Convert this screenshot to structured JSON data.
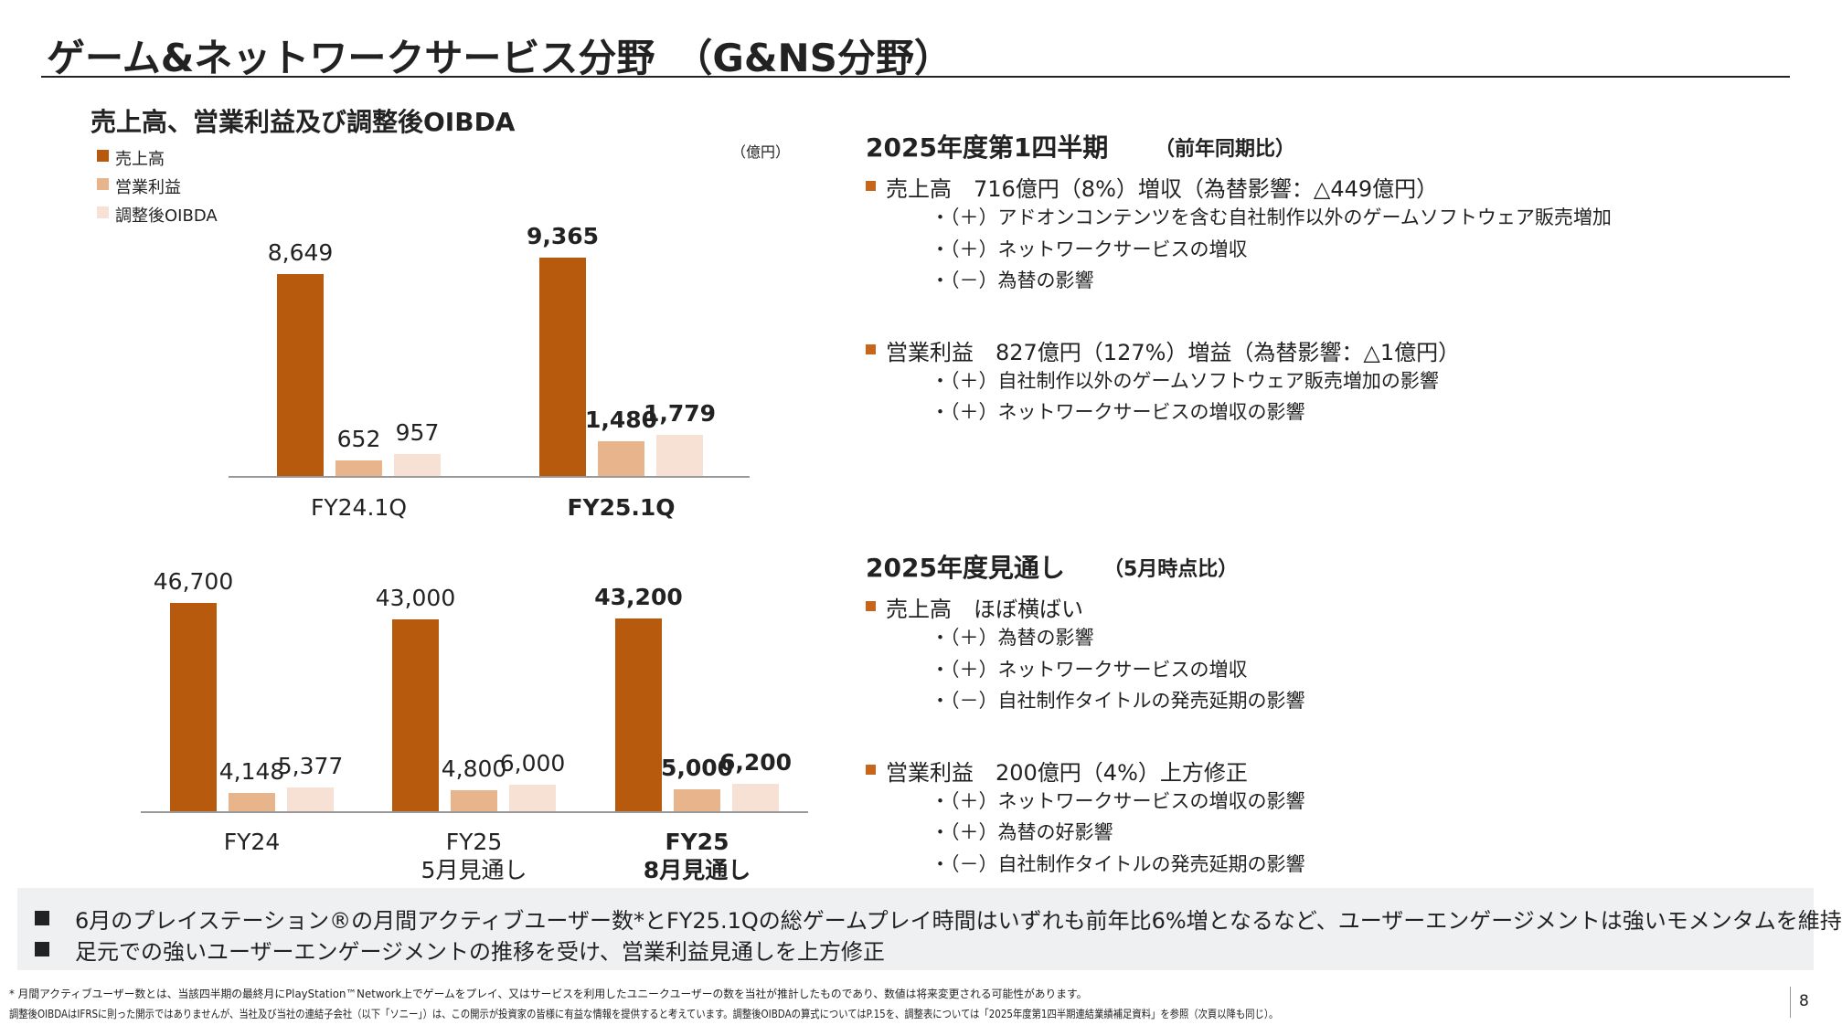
{
  "header": {
    "title": "ゲーム&ネットワークサービス分野　（G&NS分野）"
  },
  "chart_data": [
    {
      "type": "bar",
      "title": "売上高、営業利益及び調整後OIBDA",
      "unit": "（億円）",
      "categories": [
        "FY24.1Q",
        "FY25.1Q"
      ],
      "series": [
        {
          "name": "売上高",
          "color": "#b85a0e",
          "values": [
            8649,
            9365
          ],
          "value_labels": [
            "8,649",
            "9,365"
          ]
        },
        {
          "name": "営業利益",
          "color": "#e8b48c",
          "values": [
            652,
            1480
          ],
          "value_labels": [
            "652",
            "1,480"
          ]
        },
        {
          "name": "調整後OIBDA",
          "color": "#f7e1d4",
          "values": [
            957,
            1779
          ],
          "value_labels": [
            "957",
            "1,779"
          ]
        }
      ]
    },
    {
      "type": "bar",
      "categories": [
        "FY24",
        "FY25\n5月見通し",
        "FY25\n8月見通し"
      ],
      "series": [
        {
          "color": "#b85a0e",
          "values": [
            46700,
            43000,
            43200
          ],
          "value_labels": [
            "46,700",
            "43,000",
            "43,200"
          ]
        },
        {
          "color": "#e8b48c",
          "values": [
            4148,
            4800,
            5000
          ],
          "value_labels": [
            "4,148",
            "4,800",
            "5,000"
          ]
        },
        {
          "color": "#f7e1d4",
          "values": [
            5377,
            6000,
            6200
          ],
          "value_labels": [
            "5,377",
            "6,000",
            "6,200"
          ]
        }
      ]
    }
  ],
  "sections": [
    {
      "title": "2025年度第1四半期",
      "note": "（前年同期比）",
      "items": [
        {
          "text": "売上高　716億円（8%）増収（為替影響：△449億円）",
          "subs": [
            "・（＋）アドオンコンテンツを含む自社制作以外のゲームソフトウェア販売増加",
            "・（＋）ネットワークサービスの増収",
            "・（－）為替の影響"
          ]
        },
        {
          "text": "営業利益　827億円（127%）増益（為替影響：△1億円）",
          "subs": [
            "・（＋）自社制作以外のゲームソフトウェア販売増加の影響",
            "・（＋）ネットワークサービスの増収の影響"
          ]
        }
      ]
    },
    {
      "title": "2025年度見通し",
      "note": "（5月時点比）",
      "items": [
        {
          "text": "売上高　ほぼ横ばい",
          "subs": [
            "・（＋）為替の影響",
            "・（＋）ネットワークサービスの増収",
            "・（－）自社制作タイトルの発売延期の影響"
          ]
        },
        {
          "text": "営業利益　200億円（4%）上方修正",
          "subs": [
            "・（＋）ネットワークサービスの増収の影響",
            "・（＋）為替の好影響",
            "・（－）自社制作タイトルの発売延期の影響"
          ]
        }
      ]
    }
  ],
  "summary": [
    "6月のプレイステーション®の月間アクティブユーザー数*とFY25.1Qの総ゲームプレイ時間はいずれも前年比6%増となるなど、ユーザーエンゲージメントは強いモメンタムを維持",
    "足元での強いユーザーエンゲージメントの推移を受け、営業利益見通しを上方修正"
  ],
  "footnotes": [
    "* 月間アクティブユーザー数とは、当該四半期の最終月にPlayStation™Network上でゲームをプレイ、又はサービスを利用したユニークユーザーの数を当社が推計したものであり、数値は将来変更される可能性があります。",
    "調整後OIBDAはIFRSに則った開示ではありませんが、当社及び当社の連結子会社（以下「ソニー」）は、この開示が投資家の皆様に有益な情報を提供すると考えています。調整後OIBDAの算式についてはP.15を、調整表については「2025年度第1四半期連結業績補足資料」を参照（次頁以降も同じ）。"
  ],
  "page": "8"
}
